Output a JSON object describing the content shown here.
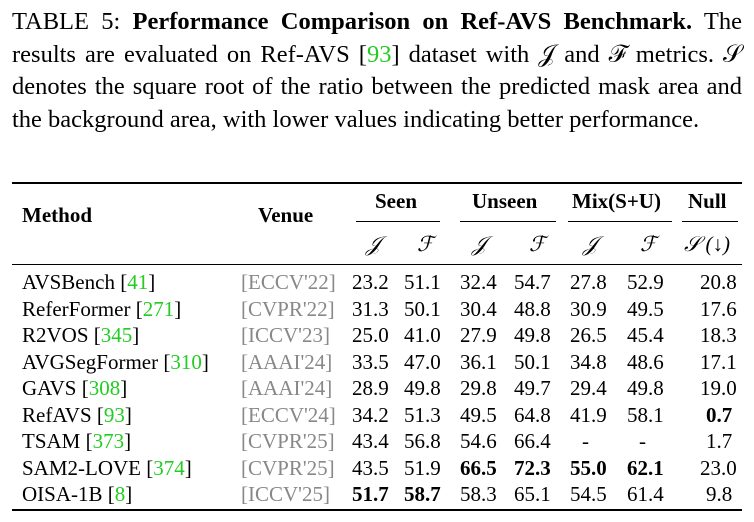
{
  "caption": {
    "label": "TABLE 5:",
    "title": "Performance Comparison on Ref-AVS Benchmark.",
    "text_1": "The results are evaluated on Ref-AVS [",
    "ref": "93",
    "text_2": "] dataset with 𝒥 and ℱ metrics. 𝒮 denotes the square root of the ratio between the predicted mask area and the background area, with lower values indicating better performance."
  },
  "table": {
    "headers": {
      "method": "Method",
      "venue": "Venue",
      "seen": "Seen",
      "unseen": "Unseen",
      "mix": "Mix(S+U)",
      "null": "Null"
    },
    "subheaders": [
      "𝒥",
      "ℱ",
      "𝒥",
      "ℱ",
      "𝒥",
      "ℱ",
      "𝒮 (↓)"
    ],
    "rows": [
      {
        "name": "AVSBench",
        "ref": "41",
        "venue": "[ECCV'22]",
        "vals": [
          "23.2",
          "51.1",
          "32.4",
          "54.7",
          "27.8",
          "52.9",
          "20.8"
        ],
        "bold": []
      },
      {
        "name": "ReferFormer",
        "ref": "271",
        "venue": "[CVPR'22]",
        "vals": [
          "31.3",
          "50.1",
          "30.4",
          "48.8",
          "30.9",
          "49.5",
          "17.6"
        ],
        "bold": []
      },
      {
        "name": "R2VOS",
        "ref": "345",
        "venue": "[ICCV'23]",
        "vals": [
          "25.0",
          "41.0",
          "27.9",
          "49.8",
          "26.5",
          "45.4",
          "18.3"
        ],
        "bold": []
      },
      {
        "name": "AVGSegFormer",
        "ref": "310",
        "venue": "[AAAI'24]",
        "vals": [
          "33.5",
          "47.0",
          "36.1",
          "50.1",
          "34.8",
          "48.6",
          "17.1"
        ],
        "bold": []
      },
      {
        "name": "GAVS",
        "ref": "308",
        "venue": "[AAAI'24]",
        "vals": [
          "28.9",
          "49.8",
          "29.8",
          "49.7",
          "29.4",
          "49.8",
          "19.0"
        ],
        "bold": []
      },
      {
        "name": "RefAVS",
        "ref": "93",
        "venue": "[ECCV'24]",
        "vals": [
          "34.2",
          "51.3",
          "49.5",
          "64.8",
          "41.9",
          "58.1",
          "0.7"
        ],
        "bold": [
          6
        ]
      },
      {
        "name": "TSAM",
        "ref": "373",
        "venue": "[CVPR'25]",
        "vals": [
          "43.4",
          "56.8",
          "54.6",
          "66.4",
          "-",
          "-",
          "1.7"
        ],
        "bold": []
      },
      {
        "name": "SAM2-LOVE",
        "ref": "374",
        "venue": "[CVPR'25]",
        "vals": [
          "43.5",
          "51.9",
          "66.5",
          "72.3",
          "55.0",
          "62.1",
          "23.0"
        ],
        "bold": [
          2,
          3,
          4,
          5
        ]
      },
      {
        "name": "OISA-1B",
        "ref": "8",
        "venue": "[ICCV'25]",
        "vals": [
          "51.7",
          "58.7",
          "58.3",
          "65.1",
          "54.5",
          "61.4",
          "9.8"
        ],
        "bold": [
          0,
          1
        ]
      }
    ]
  }
}
